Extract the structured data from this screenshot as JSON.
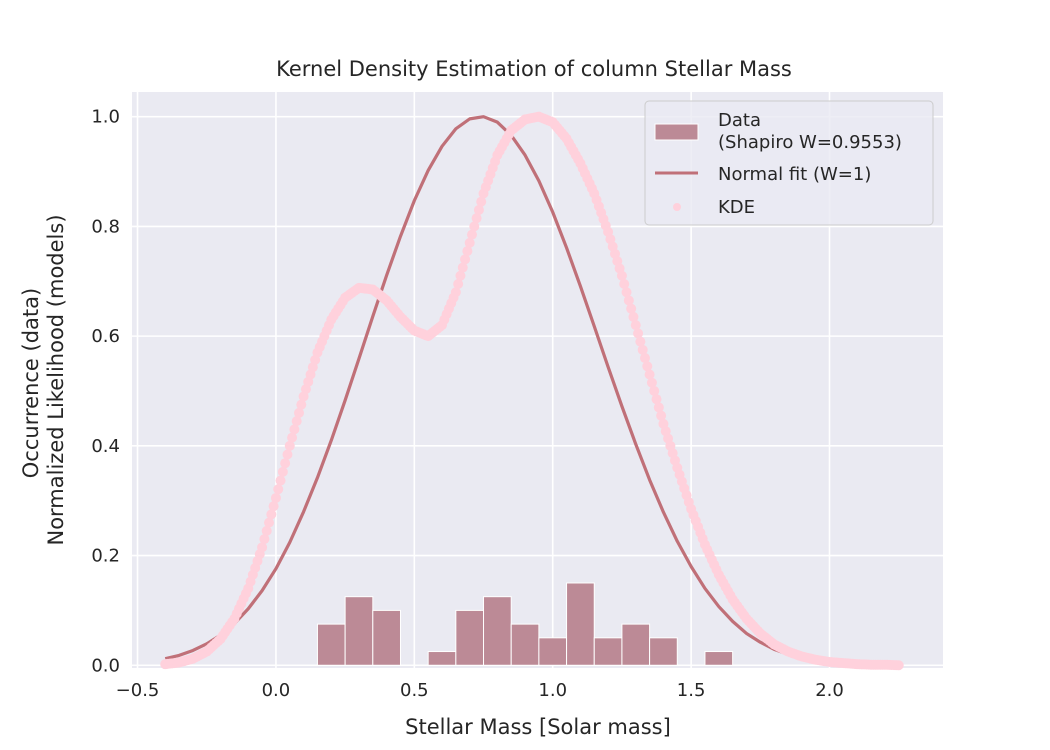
{
  "chart_data": {
    "type": "histogram+line+scatter",
    "title": "Kernel Density Estimation of column Stellar Mass",
    "xlabel": "Stellar Mass [Solar mass]",
    "ylabel_line1": "Occurrence (data)",
    "ylabel_line2": "Normalized Likelihood (models)",
    "xlim": [
      -0.52,
      2.41
    ],
    "ylim": [
      -0.005,
      1.045
    ],
    "xticks": [
      {
        "value": -0.5,
        "label": "−0.5"
      },
      {
        "value": 0.0,
        "label": "0.0"
      },
      {
        "value": 0.5,
        "label": "0.5"
      },
      {
        "value": 1.0,
        "label": "1.0"
      },
      {
        "value": 1.5,
        "label": "1.5"
      },
      {
        "value": 2.0,
        "label": "2.0"
      }
    ],
    "yticks": [
      {
        "value": 0.0,
        "label": "0.0"
      },
      {
        "value": 0.2,
        "label": "0.2"
      },
      {
        "value": 0.4,
        "label": "0.4"
      },
      {
        "value": 0.6,
        "label": "0.6"
      },
      {
        "value": 0.8,
        "label": "0.8"
      },
      {
        "value": 1.0,
        "label": "1.0"
      }
    ],
    "grid": true,
    "legend_position": "top-right",
    "colors": {
      "background": "#eaeaf2",
      "grid": "#ffffff",
      "bars": "#bc8a96",
      "normal_fit": "#c07078",
      "kde": "#ffd1dc"
    },
    "histogram": {
      "name": "Data\n(Shapiro W=0.9553)",
      "bins": [
        {
          "x0": 0.15,
          "x1": 0.25,
          "value": 0.075
        },
        {
          "x0": 0.25,
          "x1": 0.35,
          "value": 0.125
        },
        {
          "x0": 0.35,
          "x1": 0.45,
          "value": 0.1
        },
        {
          "x0": 0.55,
          "x1": 0.65,
          "value": 0.025
        },
        {
          "x0": 0.65,
          "x1": 0.75,
          "value": 0.1
        },
        {
          "x0": 0.75,
          "x1": 0.85,
          "value": 0.125
        },
        {
          "x0": 0.85,
          "x1": 0.95,
          "value": 0.075
        },
        {
          "x0": 0.95,
          "x1": 1.05,
          "value": 0.05
        },
        {
          "x0": 1.05,
          "x1": 1.15,
          "value": 0.15
        },
        {
          "x0": 1.15,
          "x1": 1.25,
          "value": 0.05
        },
        {
          "x0": 1.25,
          "x1": 1.35,
          "value": 0.075
        },
        {
          "x0": 1.35,
          "x1": 1.45,
          "value": 0.05
        },
        {
          "x0": 1.55,
          "x1": 1.65,
          "value": 0.025
        }
      ]
    },
    "normal_fit": {
      "name": "Normal fit (W=1)",
      "x": [
        -0.4,
        -0.35,
        -0.3,
        -0.25,
        -0.2,
        -0.15,
        -0.1,
        -0.05,
        0.0,
        0.05,
        0.1,
        0.15,
        0.2,
        0.25,
        0.3,
        0.35,
        0.4,
        0.45,
        0.5,
        0.55,
        0.6,
        0.65,
        0.7,
        0.75,
        0.8,
        0.85,
        0.9,
        0.95,
        1.0,
        1.05,
        1.1,
        1.15,
        1.2,
        1.25,
        1.3,
        1.35,
        1.4,
        1.45,
        1.5,
        1.55,
        1.6,
        1.65,
        1.7,
        1.75,
        1.8,
        1.85,
        1.9,
        1.95,
        2.0
      ],
      "y": [
        0.012,
        0.018,
        0.027,
        0.039,
        0.055,
        0.076,
        0.103,
        0.136,
        0.176,
        0.224,
        0.28,
        0.342,
        0.41,
        0.483,
        0.559,
        0.636,
        0.711,
        0.782,
        0.847,
        0.902,
        0.946,
        0.978,
        0.996,
        1.0,
        0.99,
        0.966,
        0.93,
        0.883,
        0.826,
        0.761,
        0.691,
        0.618,
        0.544,
        0.472,
        0.403,
        0.338,
        0.279,
        0.226,
        0.18,
        0.14,
        0.107,
        0.08,
        0.058,
        0.042,
        0.029,
        0.02,
        0.013,
        0.009,
        0.006
      ]
    },
    "kde": {
      "name": "KDE",
      "x": [
        -0.4,
        -0.35,
        -0.3,
        -0.25,
        -0.2,
        -0.15,
        -0.1,
        -0.05,
        0.0,
        0.05,
        0.1,
        0.15,
        0.2,
        0.25,
        0.3,
        0.35,
        0.4,
        0.45,
        0.5,
        0.55,
        0.6,
        0.65,
        0.7,
        0.75,
        0.8,
        0.85,
        0.9,
        0.95,
        1.0,
        1.05,
        1.1,
        1.15,
        1.2,
        1.25,
        1.3,
        1.35,
        1.4,
        1.45,
        1.5,
        1.55,
        1.6,
        1.65,
        1.7,
        1.75,
        1.8,
        1.85,
        1.9,
        1.95,
        2.0,
        2.05,
        2.1,
        2.15,
        2.2,
        2.25
      ],
      "y": [
        0.002,
        0.005,
        0.012,
        0.025,
        0.048,
        0.085,
        0.14,
        0.215,
        0.305,
        0.4,
        0.49,
        0.57,
        0.63,
        0.67,
        0.688,
        0.685,
        0.665,
        0.635,
        0.61,
        0.6,
        0.62,
        0.68,
        0.77,
        0.86,
        0.93,
        0.975,
        0.995,
        1.0,
        0.99,
        0.96,
        0.915,
        0.86,
        0.79,
        0.71,
        0.62,
        0.53,
        0.44,
        0.36,
        0.285,
        0.22,
        0.165,
        0.12,
        0.085,
        0.058,
        0.038,
        0.025,
        0.016,
        0.01,
        0.006,
        0.004,
        0.002,
        0.001,
        0.001,
        0.0
      ]
    }
  }
}
